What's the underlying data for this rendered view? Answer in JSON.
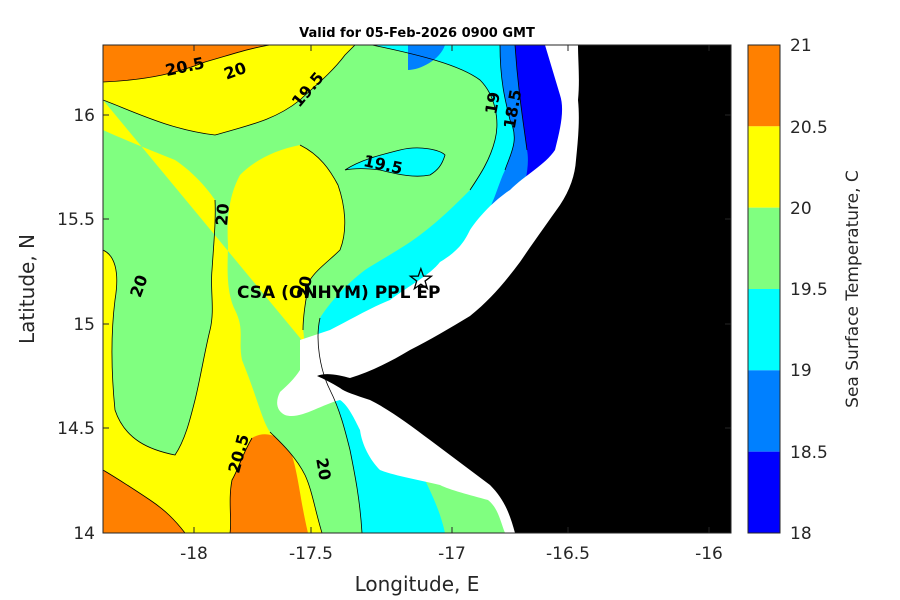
{
  "title": "Valid for 05-Feb-2026 0900 GMT",
  "axes": {
    "xlabel": "Longitude, E",
    "ylabel": "Latitude, N",
    "xlim": [
      -18.35,
      -15.92
    ],
    "ylim": [
      14.0,
      16.35
    ],
    "xticks": [
      "-18",
      "-17.5",
      "-17",
      "-16.5",
      "-16"
    ],
    "yticks": [
      "14",
      "14.5",
      "15",
      "15.5",
      "16"
    ]
  },
  "colorbar": {
    "label": "Sea Surface Temperature, C",
    "ticks": [
      "21",
      "20.5",
      "20",
      "19.5",
      "19",
      "18.5",
      "18"
    ],
    "bins": [
      {
        "range": "20.5-21",
        "color": "#ff8000"
      },
      {
        "range": "20-20.5",
        "color": "#ffff00"
      },
      {
        "range": "19.5-20",
        "color": "#80ff80"
      },
      {
        "range": "19-19.5",
        "color": "#00ffff"
      },
      {
        "range": "18.5-19",
        "color": "#0080ff"
      },
      {
        "range": "18-18.5",
        "color": "#0000ff"
      }
    ]
  },
  "contour_labels": [
    "20.5",
    "20",
    "19.5",
    "19.5",
    "19",
    "18.5",
    "20",
    "20",
    "20",
    "20.5",
    "20"
  ],
  "station": {
    "label": "CSA (ONHYM) PPL EP",
    "lon": -17.12,
    "lat": 15.22,
    "marker": "star-icon"
  },
  "colors": {
    "land": "#000000",
    "no_data": "#ffffff"
  }
}
